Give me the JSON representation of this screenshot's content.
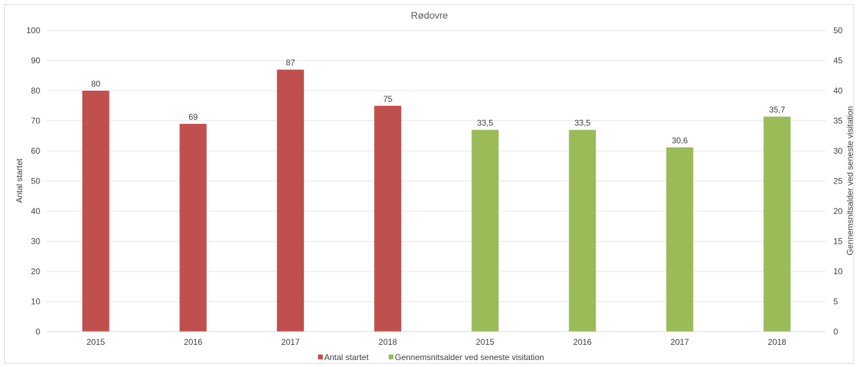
{
  "chart_data": {
    "type": "bar",
    "title": "Rødovre",
    "categories": [
      "2015",
      "2016",
      "2017",
      "2018",
      "2015",
      "2016",
      "2017",
      "2018"
    ],
    "series": [
      {
        "name": "Antal startet",
        "axis": "left",
        "color": "#C0504D",
        "values": [
          80,
          69,
          87,
          75,
          null,
          null,
          null,
          null
        ],
        "labels": [
          "80",
          "69",
          "87",
          "75",
          null,
          null,
          null,
          null
        ]
      },
      {
        "name": "Gennemsnitsalder ved seneste visitation",
        "axis": "right",
        "color": "#9BBB59",
        "values": [
          null,
          null,
          null,
          null,
          33.5,
          33.5,
          30.6,
          35.7
        ],
        "labels": [
          null,
          null,
          null,
          null,
          "33,5",
          "33,5",
          "30,6",
          "35,7"
        ]
      }
    ],
    "ylabel": "Antal startet",
    "y2label": "Gennemsnitsalder ved seneste visitation",
    "ylim": [
      0,
      100
    ],
    "y2lim": [
      0,
      50
    ],
    "yticks": [
      "0",
      "10",
      "20",
      "30",
      "40",
      "50",
      "60",
      "70",
      "80",
      "90",
      "100"
    ],
    "y2ticks": [
      "0",
      "5",
      "10",
      "15",
      "20",
      "25",
      "30",
      "35",
      "40",
      "45",
      "50"
    ],
    "grid": true,
    "legend_position": "bottom"
  }
}
